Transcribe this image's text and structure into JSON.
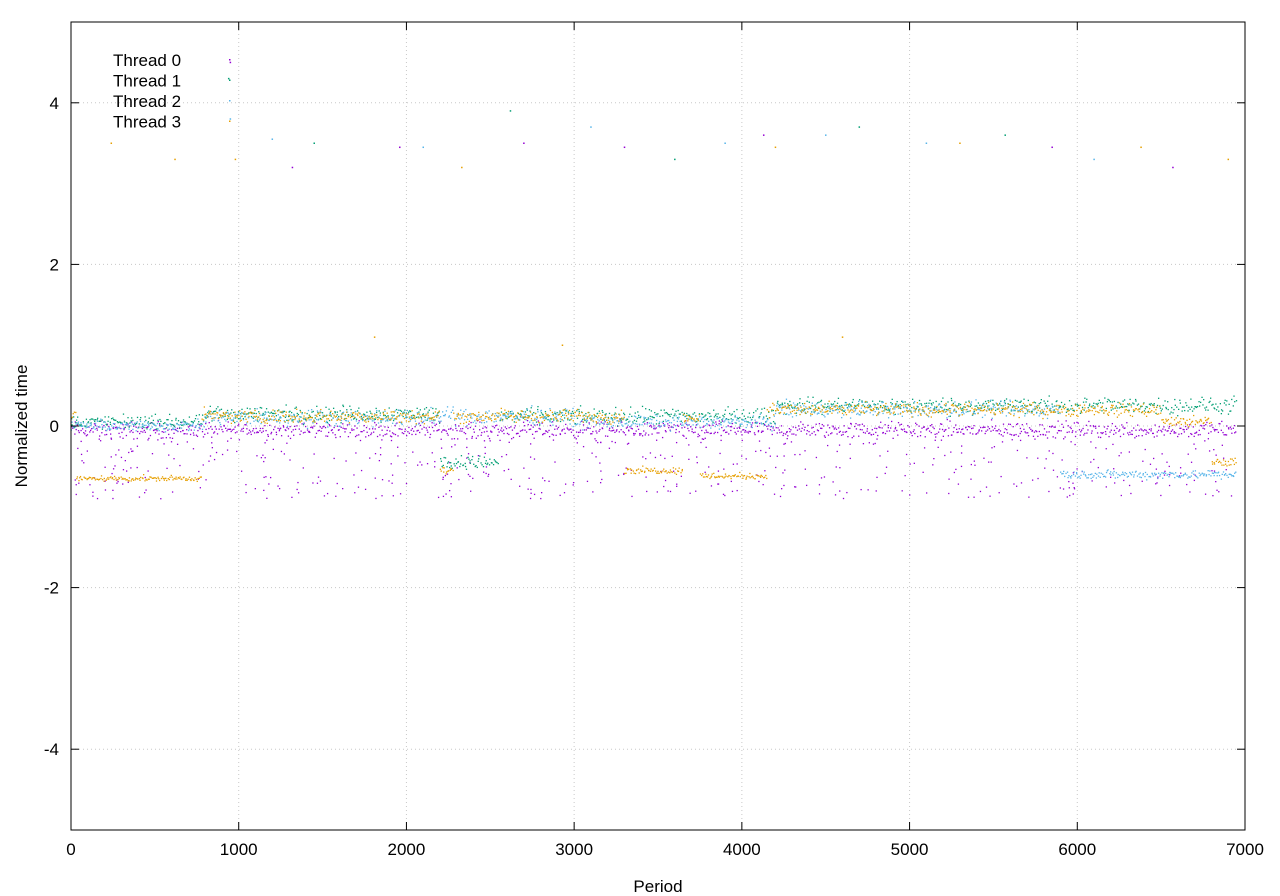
{
  "chart_data": {
    "type": "scatter",
    "title": "",
    "xlabel": "Period",
    "ylabel": "Normalized time",
    "xlim": [
      0,
      7000
    ],
    "ylim": [
      -5,
      5
    ],
    "x_ticks": [
      0,
      1000,
      2000,
      3000,
      4000,
      5000,
      6000,
      7000
    ],
    "y_ticks": [
      -4,
      -2,
      0,
      2,
      4
    ],
    "grid": true,
    "legend_position": "top-left",
    "x_max_data": 6950,
    "series": [
      {
        "name": "Thread 0",
        "color": "#9400d3",
        "marker": "dot",
        "description": "centered slightly below zero with frequent downward spikes",
        "segments": [
          {
            "x": [
              0,
              6950
            ],
            "level": -0.05,
            "spread": 0.15
          }
        ],
        "spikes": {
          "count": 500,
          "min": -0.9,
          "max": -0.15
        },
        "outliers": [
          [
            950,
            4.5
          ],
          [
            1960,
            3.45
          ],
          [
            1320,
            3.2
          ],
          [
            3300,
            3.45
          ],
          [
            4130,
            3.6
          ],
          [
            5850,
            3.45
          ],
          [
            6570,
            3.2
          ],
          [
            2700,
            3.5
          ]
        ]
      },
      {
        "name": "Thread 1",
        "color": "#009e73",
        "marker": "dot",
        "description": "noisy band around zero / slightly positive",
        "segments": [
          {
            "x": [
              0,
              800
            ],
            "level": 0.05,
            "spread": 0.12
          },
          {
            "x": [
              800,
              2200
            ],
            "level": 0.15,
            "spread": 0.15
          },
          {
            "x": [
              2200,
              2550
            ],
            "level": -0.45,
            "spread": 0.12
          },
          {
            "x": [
              2550,
              4200
            ],
            "level": 0.12,
            "spread": 0.15
          },
          {
            "x": [
              4200,
              6950
            ],
            "level": 0.25,
            "spread": 0.15
          }
        ],
        "outliers": [
          [
            940,
            4.3
          ],
          [
            1450,
            3.5
          ],
          [
            2620,
            3.9
          ],
          [
            3600,
            3.3
          ],
          [
            4700,
            3.7
          ],
          [
            5570,
            3.6
          ]
        ]
      },
      {
        "name": "Thread 2",
        "color": "#56b4e9",
        "marker": "dot",
        "description": "near zero with stretches near -0.6 late in run",
        "segments": [
          {
            "x": [
              0,
              800
            ],
            "level": 0.0,
            "spread": 0.1
          },
          {
            "x": [
              800,
              2200
            ],
            "level": 0.1,
            "spread": 0.15
          },
          {
            "x": [
              2200,
              3000
            ],
            "level": 0.12,
            "spread": 0.15
          },
          {
            "x": [
              3000,
              4200
            ],
            "level": 0.05,
            "spread": 0.12
          },
          {
            "x": [
              4200,
              5900
            ],
            "level": 0.2,
            "spread": 0.15
          },
          {
            "x": [
              5900,
              6950
            ],
            "level": -0.6,
            "spread": 0.08
          }
        ],
        "outliers": [
          [
            950,
            3.8
          ],
          [
            1200,
            3.55
          ],
          [
            2100,
            3.45
          ],
          [
            3100,
            3.7
          ],
          [
            3900,
            3.5
          ],
          [
            4500,
            3.6
          ],
          [
            5100,
            3.5
          ],
          [
            6100,
            3.3
          ]
        ]
      },
      {
        "name": "Thread 3",
        "color": "#e69f00",
        "marker": "dot",
        "description": "dense low plateau near -0.65 at start and in dips, otherwise near 0.1",
        "segments": [
          {
            "x": [
              0,
              30
            ],
            "level": 0.1,
            "spread": 0.2
          },
          {
            "x": [
              30,
              780
            ],
            "level": -0.65,
            "spread": 0.05
          },
          {
            "x": [
              780,
              2200
            ],
            "level": 0.12,
            "spread": 0.12
          },
          {
            "x": [
              2200,
              2280
            ],
            "level": -0.55,
            "spread": 0.06
          },
          {
            "x": [
              2280,
              3300
            ],
            "level": 0.12,
            "spread": 0.12
          },
          {
            "x": [
              3300,
              3650
            ],
            "level": -0.55,
            "spread": 0.06
          },
          {
            "x": [
              3650,
              3750
            ],
            "level": 0.1,
            "spread": 0.1
          },
          {
            "x": [
              3750,
              4150
            ],
            "level": -0.62,
            "spread": 0.06
          },
          {
            "x": [
              4150,
              6500
            ],
            "level": 0.2,
            "spread": 0.12
          },
          {
            "x": [
              6500,
              6800
            ],
            "level": 0.05,
            "spread": 0.1
          },
          {
            "x": [
              6800,
              6950
            ],
            "level": -0.45,
            "spread": 0.08
          }
        ],
        "outliers": [
          [
            240,
            3.5
          ],
          [
            620,
            3.3
          ],
          [
            980,
            3.3
          ],
          [
            1810,
            1.1
          ],
          [
            2330,
            3.2
          ],
          [
            2930,
            1.0
          ],
          [
            4200,
            3.45
          ],
          [
            5300,
            3.5
          ],
          [
            6380,
            3.45
          ],
          [
            6900,
            3.3
          ],
          [
            4600,
            1.1
          ]
        ]
      }
    ]
  }
}
